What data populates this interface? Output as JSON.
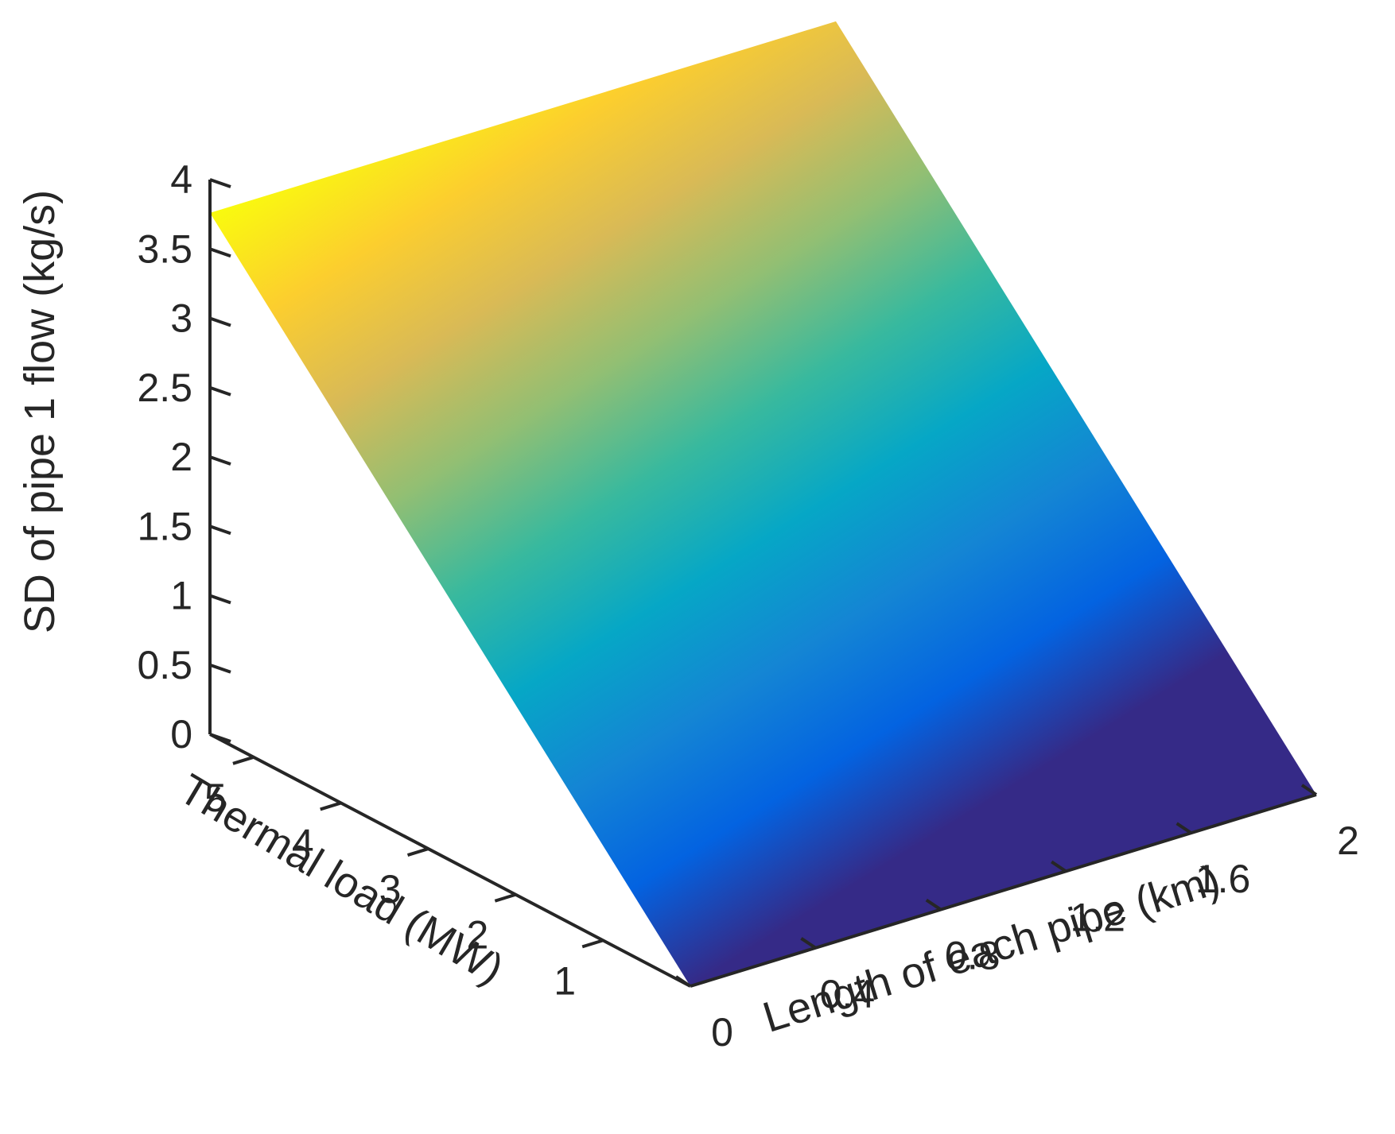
{
  "chart_data": {
    "type": "surface",
    "title": "",
    "xlabel": "Length of each pipe (km)",
    "ylabel": "Thermal load (MW)",
    "zlabel": "SD of pipe 1 flow (kg/s)",
    "xlim": [
      0,
      2
    ],
    "ylim": [
      0,
      5.5
    ],
    "zlim": [
      0,
      4
    ],
    "x_ticks": [
      "0",
      "0.4",
      "0.8",
      "1.2",
      "1.6",
      "2"
    ],
    "y_ticks": [
      "1",
      "2",
      "3",
      "4",
      "5"
    ],
    "z_ticks": [
      "0",
      "0.5",
      "1",
      "1.5",
      "2",
      "2.5",
      "3",
      "3.5",
      "4"
    ],
    "x": [
      0,
      2
    ],
    "y": [
      0,
      5.5
    ],
    "z": [
      [
        0,
        0
      ],
      [
        3.76,
        3.76
      ]
    ],
    "z_range_shown": [
      0,
      3.76
    ],
    "colormap": "parula",
    "colormap_stops": [
      "#352a87",
      "#0363e1",
      "#1485d4",
      "#06a7c6",
      "#38b99e",
      "#92bf73",
      "#d9ba56",
      "#fcce2e",
      "#f9fb0e"
    ],
    "grid": false
  }
}
